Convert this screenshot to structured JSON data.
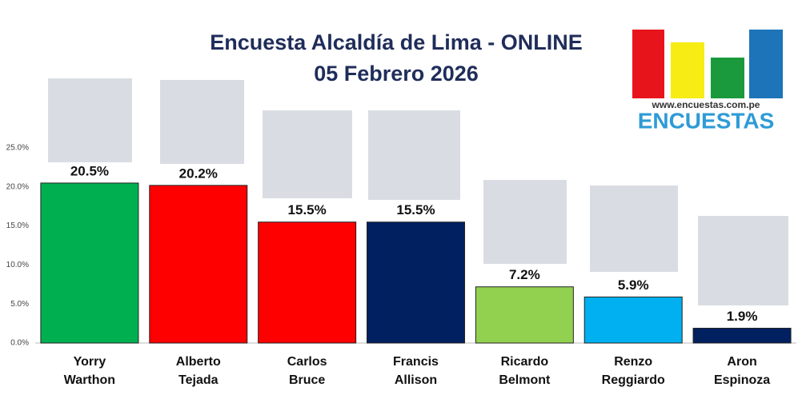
{
  "chart_data": {
    "type": "bar",
    "title": "Encuesta Alcaldía de Lima - ONLINE",
    "subtitle": "05 Febrero 2026",
    "categories": [
      "Yorry Warthon",
      "Alberto Tejada",
      "Carlos Bruce",
      "Francis Allison",
      "Ricardo Belmont",
      "Renzo Reggiardo",
      "Aron Espinoza"
    ],
    "values": [
      20.5,
      20.2,
      15.5,
      15.5,
      7.2,
      5.9,
      1.9
    ],
    "value_labels": [
      "20.5%",
      "20.2%",
      "15.5%",
      "15.5%",
      "7.2%",
      "5.9%",
      "1.9%"
    ],
    "colors": [
      "#00b050",
      "#ff0000",
      "#ff0000",
      "#002060",
      "#92d050",
      "#00b0f0",
      "#002060"
    ],
    "ylim": [
      0,
      25
    ],
    "yticks": [
      {
        "value": 0,
        "label": "0.0%"
      },
      {
        "value": 5,
        "label": "5.0%"
      },
      {
        "value": 10,
        "label": "10.0%"
      },
      {
        "value": 15,
        "label": "15.0%"
      },
      {
        "value": 20,
        "label": "20.0%"
      },
      {
        "value": 25,
        "label": "25.0%"
      }
    ],
    "grid": false
  },
  "logo": {
    "url": "www.encuestas.com.pe",
    "name": "ENCUESTAS"
  }
}
